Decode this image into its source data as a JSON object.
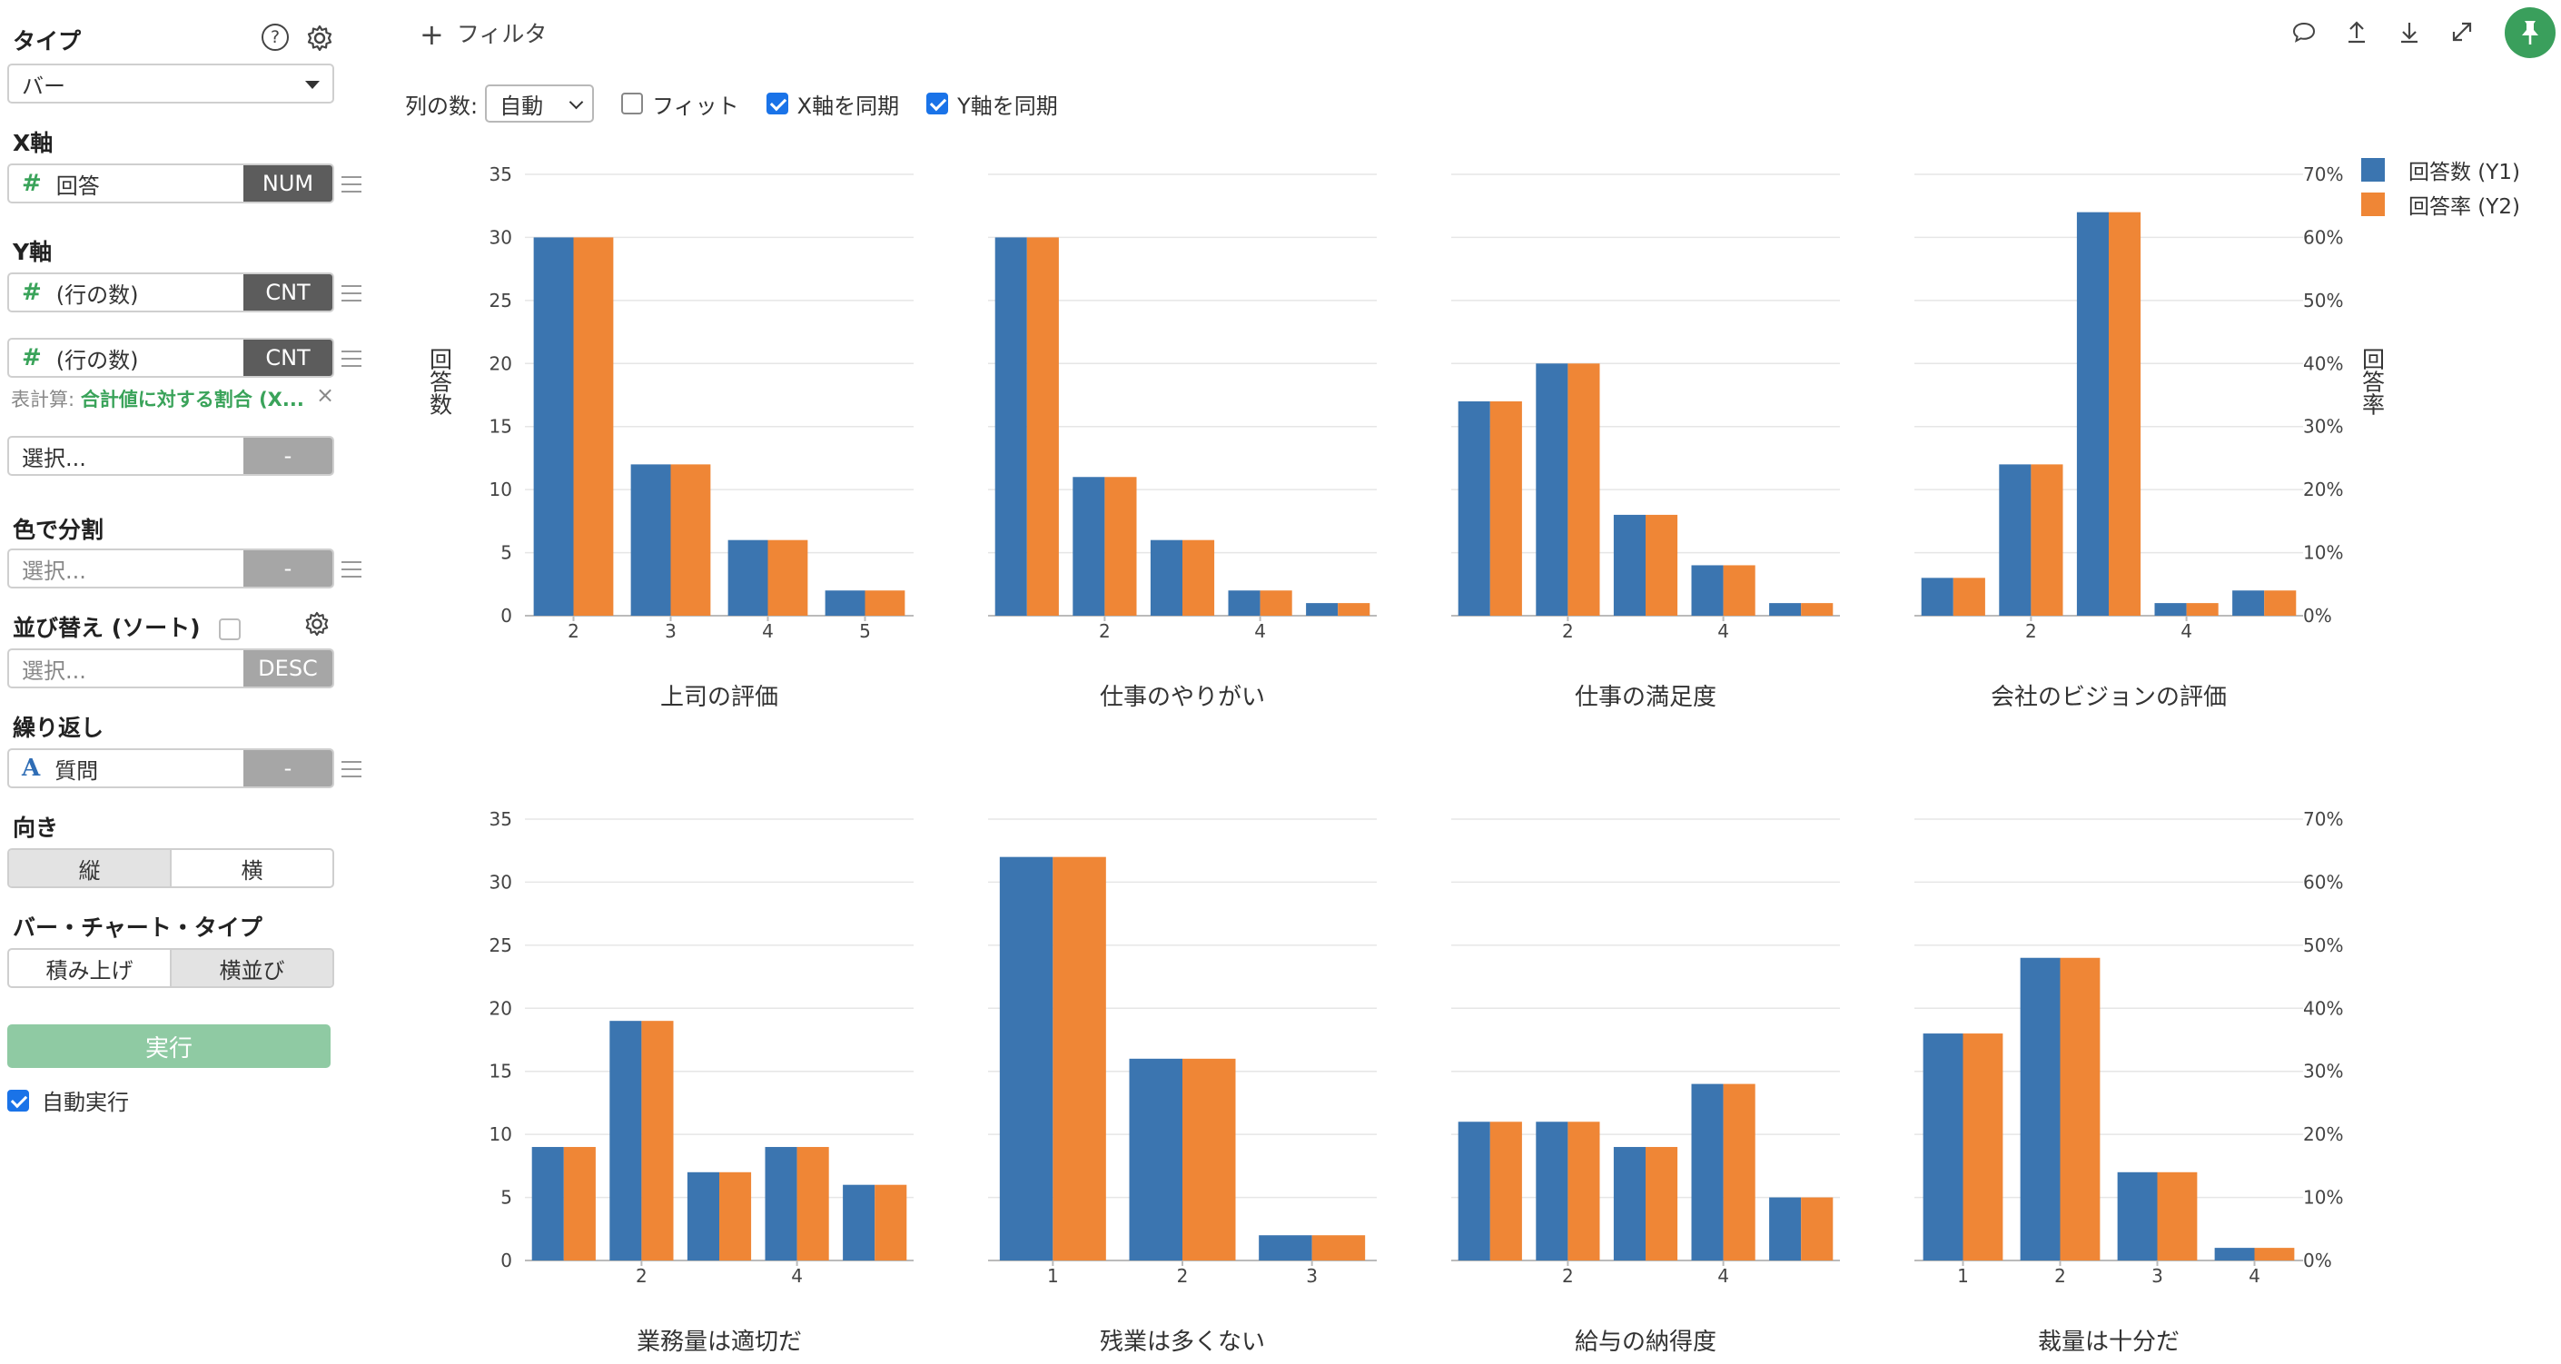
{
  "sidebar": {
    "type": {
      "title": "タイプ",
      "value": "バー"
    },
    "x_axis": {
      "title": "X軸",
      "field": "回答",
      "agg": "NUM"
    },
    "y_axis": {
      "title": "Y軸",
      "fields": [
        {
          "field": "(行の数)",
          "agg": "CNT"
        },
        {
          "field": "(行の数)",
          "agg": "CNT"
        }
      ],
      "table_calc_label": "表計算:",
      "table_calc_value": "合計値に対する割合 (X...",
      "extra_placeholder": "選択...",
      "extra_tag": "-"
    },
    "color": {
      "title": "色で分割",
      "placeholder": "選択...",
      "tag": "-"
    },
    "sort": {
      "title": "並び替え (ソート)",
      "placeholder": "選択...",
      "tag": "DESC"
    },
    "repeat": {
      "title": "繰り返し",
      "field": "質問",
      "tag": "-"
    },
    "orientation": {
      "title": "向き",
      "options": [
        "縦",
        "横"
      ],
      "active": 0
    },
    "bar_type": {
      "title": "バー・チャート・タイプ",
      "options": [
        "積み上げ",
        "横並び"
      ],
      "active": 1
    },
    "run_label": "実行",
    "auto_run_label": "自動実行"
  },
  "toolbar": {
    "filter_label": "フィルタ",
    "cols_label": "列の数:",
    "cols_value": "自動",
    "fit_label": "フィット",
    "sync_x_label": "X軸を同期",
    "sync_y_label": "Y軸を同期"
  },
  "colors": {
    "y1": "#3b75b0",
    "y2": "#ef8636",
    "accent": "#3a9f5c"
  },
  "legend": [
    "回答数 (Y1)",
    "回答率 (Y2)"
  ],
  "chart_data": {
    "type": "bar",
    "ylabel": "回答数",
    "y2label": "回答率",
    "ylim": [
      0,
      35
    ],
    "y2lim": [
      0,
      0.7
    ],
    "yticks": [
      0,
      5,
      10,
      15,
      20,
      25,
      30,
      35
    ],
    "y2ticks": [
      "0%",
      "10%",
      "20%",
      "30%",
      "40%",
      "50%",
      "60%",
      "70%"
    ],
    "grid": true,
    "legend_position": "top-right",
    "panels": [
      {
        "title": "上司の評価",
        "categories": [
          2,
          3,
          4,
          5
        ],
        "tick_labels": [
          "2",
          "3",
          "4",
          "5"
        ],
        "y1": [
          30,
          12,
          6,
          2
        ],
        "y2": [
          0.6,
          0.24,
          0.12,
          0.04
        ]
      },
      {
        "title": "仕事のやりがい",
        "categories": [
          1,
          2,
          3,
          4,
          5
        ],
        "tick_labels": [
          "",
          "2",
          "",
          "4",
          ""
        ],
        "y1": [
          30,
          11,
          6,
          2,
          1
        ],
        "y2": [
          0.6,
          0.22,
          0.12,
          0.04,
          0.02
        ]
      },
      {
        "title": "仕事の満足度",
        "categories": [
          1,
          2,
          3,
          4,
          5
        ],
        "tick_labels": [
          "",
          "2",
          "",
          "4",
          ""
        ],
        "y1": [
          17,
          20,
          8,
          4,
          1
        ],
        "y2": [
          0.34,
          0.4,
          0.16,
          0.08,
          0.02
        ]
      },
      {
        "title": "会社のビジョンの評価",
        "categories": [
          1,
          2,
          3,
          4,
          5
        ],
        "tick_labels": [
          "",
          "2",
          "",
          "4",
          ""
        ],
        "y1": [
          3,
          12,
          32,
          1,
          2
        ],
        "y2": [
          0.06,
          0.24,
          0.64,
          0.02,
          0.04
        ]
      },
      {
        "title": "業務量は適切だ",
        "categories": [
          1,
          2,
          3,
          4,
          5
        ],
        "tick_labels": [
          "",
          "2",
          "",
          "4",
          ""
        ],
        "y1": [
          9,
          19,
          7,
          9,
          6
        ],
        "y2": [
          0.18,
          0.38,
          0.14,
          0.18,
          0.12
        ]
      },
      {
        "title": "残業は多くない",
        "categories": [
          1,
          2,
          3
        ],
        "tick_labels": [
          "1",
          "2",
          "3"
        ],
        "y1": [
          32,
          16,
          2
        ],
        "y2": [
          0.64,
          0.32,
          0.04
        ]
      },
      {
        "title": "給与の納得度",
        "categories": [
          1,
          2,
          3,
          4,
          5
        ],
        "tick_labels": [
          "",
          "2",
          "",
          "4",
          ""
        ],
        "y1": [
          11,
          11,
          9,
          14,
          5
        ],
        "y2": [
          0.22,
          0.22,
          0.18,
          0.28,
          0.1
        ]
      },
      {
        "title": "裁量は十分だ",
        "categories": [
          1,
          2,
          3,
          4
        ],
        "tick_labels": [
          "1",
          "2",
          "3",
          "4"
        ],
        "y1": [
          18,
          24,
          7,
          1
        ],
        "y2": [
          0.36,
          0.48,
          0.14,
          0.02
        ]
      }
    ]
  }
}
